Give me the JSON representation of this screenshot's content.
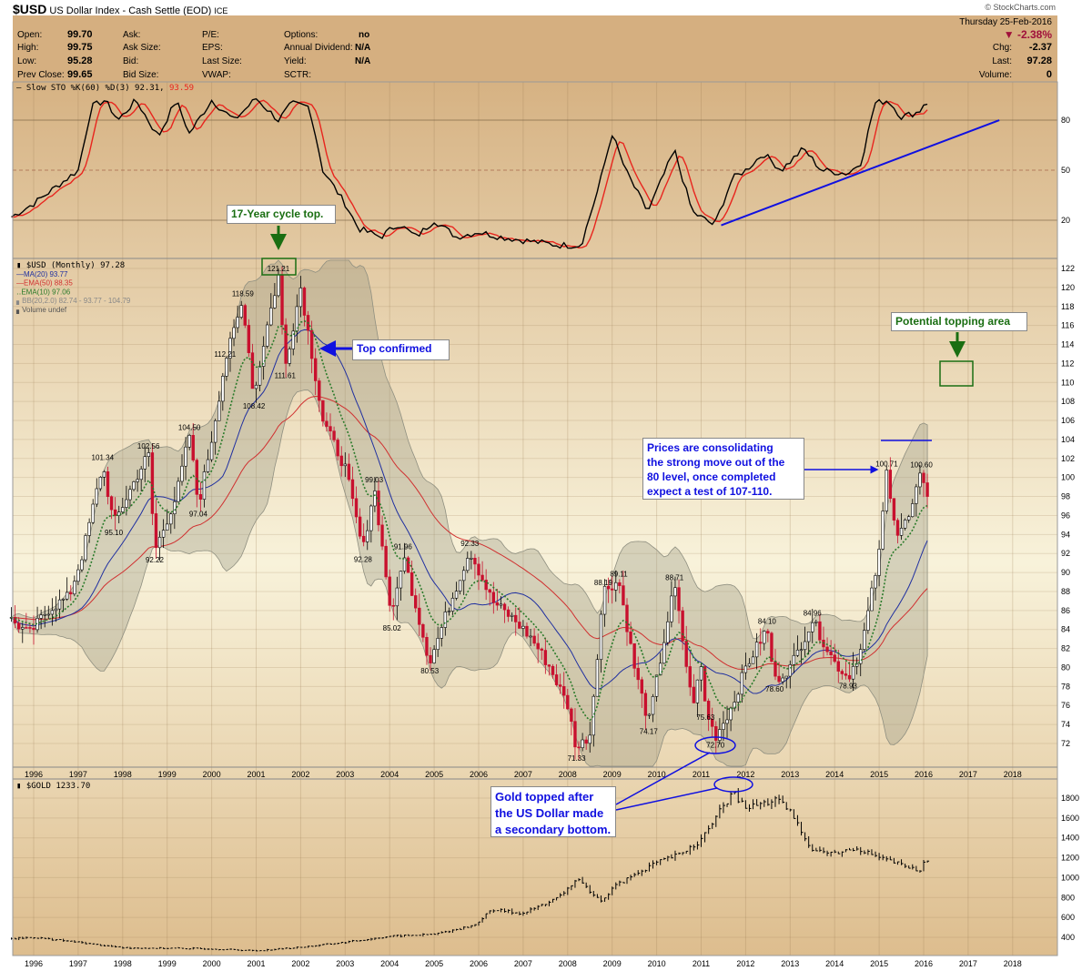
{
  "header": {
    "symbol": "$USD",
    "name": "US Dollar Index - Cash Settle (EOD)",
    "exchange": "ICE",
    "copyright": "© StockCharts.com"
  },
  "info": {
    "open_label": "Open:",
    "open": "99.70",
    "high_label": "High:",
    "high": "99.75",
    "low_label": "Low:",
    "low": "95.28",
    "prev_label": "Prev Close:",
    "prev": "99.65",
    "ask_label": "Ask:",
    "asksize_label": "Ask Size:",
    "bid_label": "Bid:",
    "bidsize_label": "Bid Size:",
    "pe_label": "P/E:",
    "eps_label": "EPS:",
    "lastsize_label": "Last Size:",
    "vwap_label": "VWAP:",
    "options_label": "Options:",
    "options": "no",
    "div_label": "Annual Dividend:",
    "div": "N/A",
    "yield_label": "Yield:",
    "yield": "N/A",
    "sctr_label": "SCTR:",
    "date": "Thursday  25-Feb-2016",
    "pct": "▼ -2.38%",
    "chg_label": "Chg:",
    "chg": "-2.37",
    "last_label": "Last:",
    "last": "97.28",
    "vol_label": "Volume:",
    "vol": "0"
  },
  "colors": {
    "up": "#000000",
    "down": "#c8102e",
    "ma20": "#1f2fa0",
    "ema50": "#d03030",
    "ema10": "#2a7a2a",
    "bb": "#8f8f80",
    "trend": "#1010e0",
    "note_green": "#1a6e12"
  },
  "annotations": {
    "cycle_top": "17-Year cycle top.",
    "top_confirmed": "Top confirmed",
    "topping_area": "Potential topping area",
    "consolidating": [
      "Prices are consolidating",
      "the strong move out of the",
      "80 level, once completed",
      "expect a test of 107-110."
    ],
    "gold_topped": [
      "Gold topped after",
      "the US Dollar made",
      "a secondary bottom."
    ]
  },
  "chart_data": [
    {
      "type": "line",
      "title": "Slow STO %K(60) %D(3) 92.31, 93.59",
      "legend_k": "Slow STO %K(60) %D(3) 92.31,",
      "legend_d": "93.59",
      "yticks": [
        20,
        50,
        80
      ],
      "ylim": [
        0,
        100
      ],
      "points": [
        [
          1995.5,
          22
        ],
        [
          1996.0,
          30
        ],
        [
          1996.5,
          40
        ],
        [
          1997.0,
          50
        ],
        [
          1997.3,
          88
        ],
        [
          1997.6,
          92
        ],
        [
          1997.9,
          80
        ],
        [
          1998.3,
          92
        ],
        [
          1998.8,
          70
        ],
        [
          1999.2,
          92
        ],
        [
          1999.5,
          72
        ],
        [
          2000.0,
          92
        ],
        [
          2000.5,
          80
        ],
        [
          2001.0,
          93
        ],
        [
          2001.5,
          80
        ],
        [
          2001.8,
          90
        ],
        [
          2002.2,
          88
        ],
        [
          2002.5,
          50
        ],
        [
          2003.0,
          30
        ],
        [
          2003.3,
          15
        ],
        [
          2003.8,
          10
        ],
        [
          2004.2,
          18
        ],
        [
          2004.6,
          10
        ],
        [
          2005.0,
          20
        ],
        [
          2005.5,
          10
        ],
        [
          2006.0,
          13
        ],
        [
          2006.5,
          10
        ],
        [
          2007.0,
          8
        ],
        [
          2007.8,
          5
        ],
        [
          2008.3,
          5
        ],
        [
          2008.7,
          40
        ],
        [
          2009.0,
          72
        ],
        [
          2009.3,
          50
        ],
        [
          2009.8,
          25
        ],
        [
          2010.4,
          62
        ],
        [
          2010.8,
          25
        ],
        [
          2011.3,
          17
        ],
        [
          2011.7,
          45
        ],
        [
          2012.0,
          50
        ],
        [
          2012.4,
          60
        ],
        [
          2012.8,
          50
        ],
        [
          2013.3,
          63
        ],
        [
          2013.7,
          50
        ],
        [
          2014.3,
          48
        ],
        [
          2014.6,
          55
        ],
        [
          2014.9,
          90
        ],
        [
          2015.2,
          92
        ],
        [
          2015.5,
          82
        ],
        [
          2015.9,
          85
        ],
        [
          2016.05,
          92
        ],
        [
          2016.15,
          88
        ]
      ],
      "trendline": [
        [
          2011.45,
          17
        ],
        [
          2017.7,
          80
        ]
      ]
    },
    {
      "type": "candlestick",
      "title": "$USD (Monthly) 97.28",
      "legend": [
        "MA(20) 93.77",
        "EMA(50) 88.35",
        "EMA(10) 97.06",
        "BB(20,2.0) 82.74 - 93.77 - 104.79",
        "Volume undef"
      ],
      "ylim": [
        71,
        123
      ],
      "yticks": [
        72,
        74,
        76,
        78,
        80,
        82,
        84,
        86,
        88,
        90,
        92,
        94,
        96,
        98,
        100,
        102,
        104,
        106,
        108,
        110,
        112,
        114,
        116,
        118,
        120,
        122
      ],
      "xticks": [
        "1996",
        "1997",
        "1998",
        "1999",
        "2000",
        "2001",
        "2002",
        "2003",
        "2004",
        "2005",
        "2006",
        "2007",
        "2008",
        "2009",
        "2010",
        "2011",
        "2012",
        "2013",
        "2014",
        "2015",
        "2016",
        "2017",
        "2018"
      ],
      "points": [
        [
          1995.5,
          85
        ],
        [
          1995.9,
          83.5
        ],
        [
          1996.3,
          86
        ],
        [
          1996.8,
          87.5
        ],
        [
          1997.1,
          92
        ],
        [
          1997.55,
          101.34
        ],
        [
          1997.8,
          95.1
        ],
        [
          1998.2,
          99
        ],
        [
          1998.58,
          102.56
        ],
        [
          1998.72,
          92.22
        ],
        [
          1999.2,
          98
        ],
        [
          1999.5,
          104.5
        ],
        [
          1999.7,
          97.04
        ],
        [
          2000.0,
          104
        ],
        [
          2000.3,
          112.21
        ],
        [
          2000.7,
          118.59
        ],
        [
          2000.95,
          108.42
        ],
        [
          2001.2,
          115
        ],
        [
          2001.5,
          121.21
        ],
        [
          2001.65,
          111.61
        ],
        [
          2002.0,
          120
        ],
        [
          2002.5,
          106
        ],
        [
          2003.0,
          101
        ],
        [
          2003.4,
          92.28
        ],
        [
          2003.65,
          99.03
        ],
        [
          2004.05,
          85.02
        ],
        [
          2004.3,
          91.96
        ],
        [
          2004.9,
          80.53
        ],
        [
          2005.3,
          86
        ],
        [
          2005.8,
          92.33
        ],
        [
          2006.3,
          87
        ],
        [
          2006.8,
          85
        ],
        [
          2007.2,
          83
        ],
        [
          2007.6,
          80
        ],
        [
          2008.0,
          76
        ],
        [
          2008.2,
          71.33
        ],
        [
          2008.5,
          73
        ],
        [
          2008.8,
          88.19
        ],
        [
          2009.15,
          89.11
        ],
        [
          2009.5,
          80
        ],
        [
          2009.82,
          74.17
        ],
        [
          2010.4,
          88.71
        ],
        [
          2010.8,
          76
        ],
        [
          2011.0,
          80
        ],
        [
          2011.1,
          75.63
        ],
        [
          2011.32,
          72.7
        ],
        [
          2011.7,
          76
        ],
        [
          2012.0,
          80
        ],
        [
          2012.48,
          84.1
        ],
        [
          2012.65,
          78.6
        ],
        [
          2013.0,
          80
        ],
        [
          2013.5,
          84.96
        ],
        [
          2014.0,
          80.5
        ],
        [
          2014.3,
          78.93
        ],
        [
          2014.6,
          82
        ],
        [
          2015.0,
          92
        ],
        [
          2015.17,
          100.71
        ],
        [
          2015.4,
          94
        ],
        [
          2015.7,
          96
        ],
        [
          2015.95,
          100.6
        ],
        [
          2016.15,
          97.28
        ]
      ],
      "labels": [
        [
          1997.55,
          101.34,
          "a"
        ],
        [
          1997.8,
          95.1,
          "b"
        ],
        [
          1998.58,
          102.56,
          "a"
        ],
        [
          1998.72,
          92.22,
          "b"
        ],
        [
          1999.5,
          104.5,
          "a"
        ],
        [
          1999.7,
          97.04,
          "b"
        ],
        [
          2000.3,
          112.21,
          "a"
        ],
        [
          2000.7,
          118.59,
          "a"
        ],
        [
          2000.95,
          108.42,
          "b"
        ],
        [
          2001.5,
          121.21,
          "a"
        ],
        [
          2001.65,
          111.61,
          "b"
        ],
        [
          2003.4,
          92.28,
          "b"
        ],
        [
          2003.65,
          99.03,
          "a"
        ],
        [
          2004.05,
          85.02,
          "b"
        ],
        [
          2004.3,
          91.96,
          "a"
        ],
        [
          2004.9,
          80.53,
          "b"
        ],
        [
          2005.8,
          92.33,
          "a"
        ],
        [
          2008.2,
          71.33,
          "b"
        ],
        [
          2008.8,
          88.19,
          "a"
        ],
        [
          2009.15,
          89.11,
          "a"
        ],
        [
          2009.82,
          74.17,
          "b"
        ],
        [
          2010.4,
          88.71,
          "a"
        ],
        [
          2011.1,
          75.63,
          "b"
        ],
        [
          2011.32,
          72.7,
          "b"
        ],
        [
          2012.48,
          84.1,
          "a"
        ],
        [
          2012.65,
          78.6,
          "b"
        ],
        [
          2013.5,
          84.96,
          "a"
        ],
        [
          2014.3,
          78.93,
          "b"
        ],
        [
          2015.17,
          100.71,
          "a"
        ],
        [
          2015.95,
          100.6,
          "a"
        ]
      ]
    },
    {
      "type": "bar",
      "title": "$GOLD 1233.70",
      "ylim": [
        250,
        1990
      ],
      "yticks": [
        400,
        600,
        800,
        1000,
        1200,
        1400,
        1600,
        1800
      ],
      "points": [
        [
          1995.5,
          385
        ],
        [
          1996.0,
          400
        ],
        [
          1997.0,
          350
        ],
        [
          1998.0,
          295
        ],
        [
          1999.0,
          290
        ],
        [
          2000.0,
          285
        ],
        [
          2001.0,
          265
        ],
        [
          2002.0,
          300
        ],
        [
          2003.0,
          350
        ],
        [
          2004.0,
          410
        ],
        [
          2005.0,
          430
        ],
        [
          2005.9,
          520
        ],
        [
          2006.3,
          680
        ],
        [
          2007.0,
          640
        ],
        [
          2007.8,
          800
        ],
        [
          2008.2,
          980
        ],
        [
          2008.8,
          760
        ],
        [
          2009.0,
          900
        ],
        [
          2009.9,
          1130
        ],
        [
          2010.5,
          1230
        ],
        [
          2011.0,
          1380
        ],
        [
          2011.7,
          1850
        ],
        [
          2012.0,
          1700
        ],
        [
          2012.7,
          1780
        ],
        [
          2013.0,
          1660
        ],
        [
          2013.5,
          1280
        ],
        [
          2014.0,
          1240
        ],
        [
          2014.5,
          1300
        ],
        [
          2015.0,
          1200
        ],
        [
          2015.9,
          1070
        ],
        [
          2016.15,
          1234
        ]
      ]
    }
  ]
}
